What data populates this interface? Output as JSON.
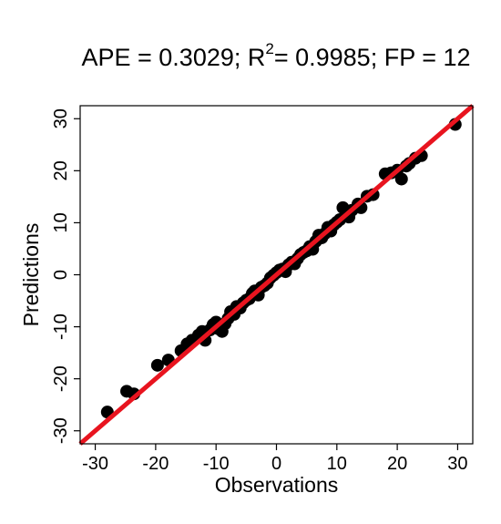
{
  "chart_data": {
    "type": "scatter",
    "title": {
      "prefix": "APE = 0.3029; R",
      "superscript": "2",
      "suffix": "= 0.9985; FP = 12"
    },
    "xlabel": "Observations",
    "ylabel": "Predictions",
    "xlim": [
      -32.5,
      32.5
    ],
    "ylim": [
      -32.5,
      32.5
    ],
    "x_ticks": [
      -30,
      -20,
      -10,
      0,
      10,
      20,
      30
    ],
    "y_ticks": [
      -30,
      -20,
      -10,
      0,
      10,
      20,
      30
    ],
    "x_tick_labels": [
      "-30",
      "-20",
      "-10",
      "0",
      "10",
      "20",
      "30"
    ],
    "y_tick_labels": [
      "-30",
      "-20",
      "-10",
      "0",
      "10",
      "20",
      "30"
    ],
    "grid": false,
    "point_color": "#000000",
    "line_color": "#e8141f",
    "reference_line": {
      "slope": 1,
      "intercept": 0
    },
    "points": [
      [
        -28.0,
        -26.4
      ],
      [
        -24.8,
        -22.4
      ],
      [
        -23.6,
        -22.9
      ],
      [
        -19.7,
        -17.4
      ],
      [
        -17.9,
        -16.4
      ],
      [
        -15.8,
        -14.6
      ],
      [
        -14.8,
        -13.3
      ],
      [
        -14.0,
        -12.6
      ],
      [
        -12.9,
        -11.6
      ],
      [
        -12.3,
        -10.9
      ],
      [
        -11.8,
        -12.6
      ],
      [
        -11.0,
        -10.6
      ],
      [
        -10.5,
        -9.6
      ],
      [
        -10.0,
        -9.1
      ],
      [
        -9.6,
        -10.4
      ],
      [
        -9.0,
        -10.9
      ],
      [
        -8.5,
        -9.4
      ],
      [
        -8.0,
        -8.4
      ],
      [
        -7.6,
        -7.1
      ],
      [
        -7.0,
        -7.6
      ],
      [
        -6.6,
        -6.1
      ],
      [
        -6.0,
        -6.4
      ],
      [
        -5.5,
        -5.4
      ],
      [
        -5.0,
        -4.9
      ],
      [
        -4.5,
        -4.6
      ],
      [
        -4.0,
        -3.6
      ],
      [
        -3.6,
        -3.1
      ],
      [
        -3.0,
        -3.9
      ],
      [
        -2.5,
        -2.4
      ],
      [
        -2.0,
        -2.1
      ],
      [
        -1.5,
        -1.6
      ],
      [
        -1.0,
        -0.6
      ],
      [
        -0.5,
        -0.1
      ],
      [
        0.0,
        0.4
      ],
      [
        0.5,
        0.9
      ],
      [
        1.0,
        1.1
      ],
      [
        1.5,
        0.6
      ],
      [
        2.0,
        1.9
      ],
      [
        2.5,
        2.4
      ],
      [
        3.0,
        2.1
      ],
      [
        3.5,
        3.1
      ],
      [
        4.0,
        3.9
      ],
      [
        4.5,
        4.3
      ],
      [
        5.0,
        4.6
      ],
      [
        5.5,
        5.4
      ],
      [
        6.0,
        4.9
      ],
      [
        6.5,
        6.4
      ],
      [
        7.0,
        7.6
      ],
      [
        7.5,
        7.1
      ],
      [
        8.0,
        7.9
      ],
      [
        8.5,
        9.1
      ],
      [
        9.0,
        8.4
      ],
      [
        9.5,
        9.6
      ],
      [
        10.0,
        10.1
      ],
      [
        10.5,
        10.6
      ],
      [
        11.0,
        12.9
      ],
      [
        11.5,
        11.4
      ],
      [
        12.0,
        11.1
      ],
      [
        12.5,
        12.4
      ],
      [
        13.5,
        13.6
      ],
      [
        14.0,
        12.9
      ],
      [
        15.0,
        15.1
      ],
      [
        16.0,
        15.4
      ],
      [
        18.0,
        19.4
      ],
      [
        19.0,
        19.6
      ],
      [
        20.0,
        20.1
      ],
      [
        20.7,
        18.4
      ],
      [
        21.5,
        20.9
      ],
      [
        22.0,
        21.4
      ],
      [
        23.0,
        22.4
      ],
      [
        24.0,
        22.9
      ],
      [
        29.6,
        28.9
      ]
    ]
  }
}
